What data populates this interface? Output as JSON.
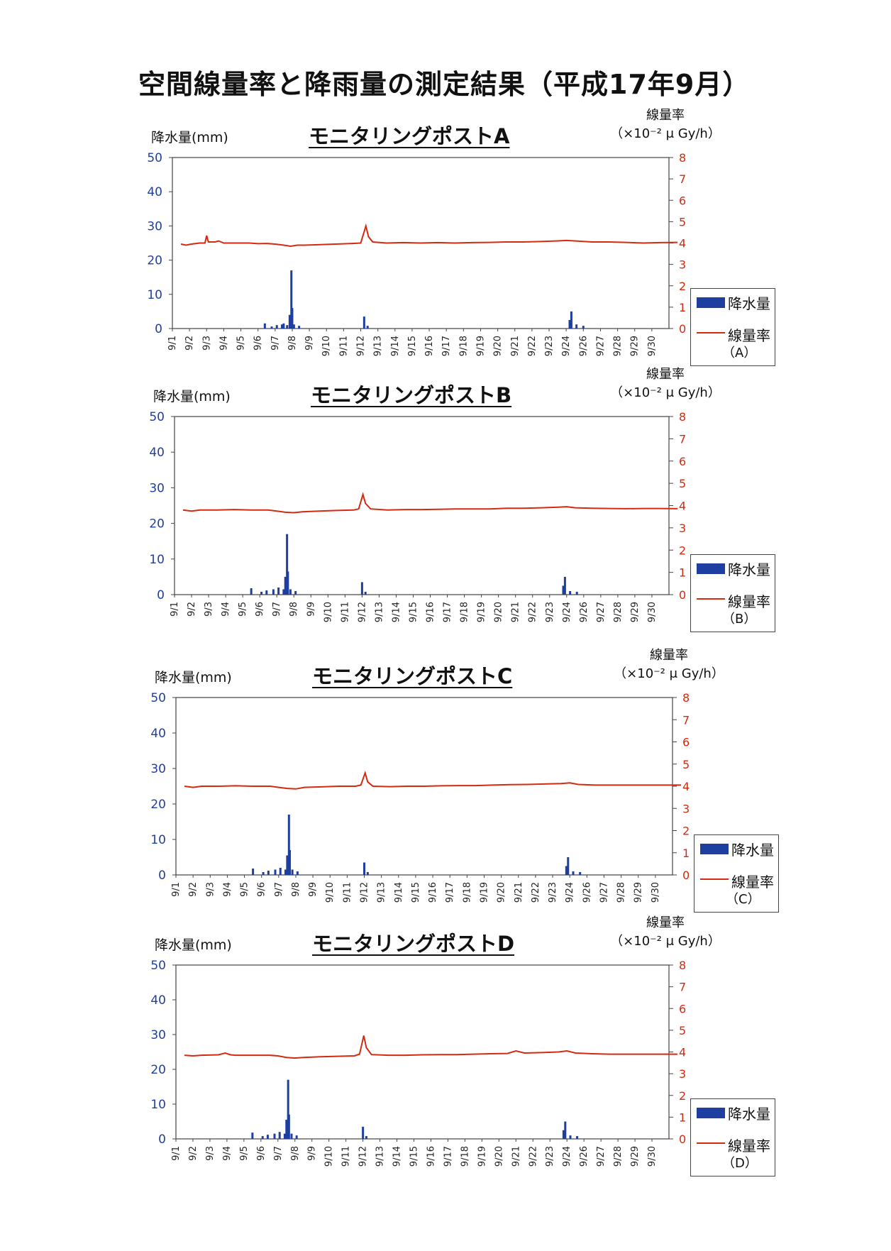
{
  "page_title": "空間線量率と降雨量の測定結果（平成17年9月）",
  "chart_data": [
    {
      "type": "bar+line",
      "title": "モニタリングポストA",
      "ylabel_left": "降水量(mm)",
      "ylabel_right_line1": "線量率",
      "ylabel_right_unit": "（×10⁻² μ Gy/h）",
      "ylim_left": [
        0,
        50
      ],
      "yticks_left": [
        "0",
        "10",
        "20",
        "30",
        "40",
        "50"
      ],
      "ylim_right": [
        0,
        8
      ],
      "yticks_right": [
        "0",
        "1",
        "2",
        "3",
        "4",
        "5",
        "6",
        "7",
        "8"
      ],
      "categories": [
        "9/1",
        "9/2",
        "9/3",
        "9/4",
        "9/5",
        "9/6",
        "9/7",
        "9/8",
        "9/9",
        "9/10",
        "9/11",
        "9/12",
        "9/13",
        "9/14",
        "9/15",
        "9/16",
        "9/17",
        "9/18",
        "9/19",
        "9/20",
        "9/21",
        "9/22",
        "9/23",
        "9/24",
        "9/26",
        "9/27",
        "9/28",
        "9/29",
        "9/30"
      ],
      "legend": {
        "bar": "降水量",
        "line": "線量率",
        "line_sub": "（A）"
      },
      "colors": {
        "bar": "#1f3fa0",
        "line": "#d42a10"
      },
      "rain": [
        [
          4.9,
          1.5
        ],
        [
          5.3,
          0.6
        ],
        [
          5.6,
          1.0
        ],
        [
          5.9,
          1.2
        ],
        [
          6.0,
          1.5
        ],
        [
          6.2,
          1.0
        ],
        [
          6.35,
          4.0
        ],
        [
          6.45,
          17.0
        ],
        [
          6.5,
          6.0
        ],
        [
          6.6,
          1.2
        ],
        [
          6.9,
          0.8
        ],
        [
          10.7,
          3.5
        ],
        [
          10.9,
          0.8
        ],
        [
          22.7,
          2.5
        ],
        [
          22.8,
          5.0
        ],
        [
          23.1,
          1.2
        ],
        [
          23.5,
          0.8
        ]
      ],
      "dose": [
        [
          0,
          3.95
        ],
        [
          0.3,
          3.9
        ],
        [
          0.6,
          3.95
        ],
        [
          1.1,
          4.0
        ],
        [
          1.4,
          4.0
        ],
        [
          1.5,
          4.35
        ],
        [
          1.6,
          4.05
        ],
        [
          2.0,
          4.05
        ],
        [
          2.2,
          4.1
        ],
        [
          2.5,
          4.0
        ],
        [
          3.5,
          4.0
        ],
        [
          4.0,
          4.0
        ],
        [
          4.5,
          3.97
        ],
        [
          5.0,
          3.98
        ],
        [
          5.5,
          3.95
        ],
        [
          6.0,
          3.9
        ],
        [
          6.4,
          3.85
        ],
        [
          6.8,
          3.9
        ],
        [
          7.2,
          3.9
        ],
        [
          8.0,
          3.92
        ],
        [
          9.0,
          3.95
        ],
        [
          10.0,
          3.98
        ],
        [
          10.5,
          4.0
        ],
        [
          10.8,
          4.8
        ],
        [
          10.95,
          4.3
        ],
        [
          11.2,
          4.05
        ],
        [
          12.0,
          4.0
        ],
        [
          13.0,
          4.02
        ],
        [
          14.0,
          4.0
        ],
        [
          15.0,
          4.02
        ],
        [
          16.0,
          4.0
        ],
        [
          17.0,
          4.02
        ],
        [
          18.0,
          4.03
        ],
        [
          19.0,
          4.05
        ],
        [
          20.0,
          4.05
        ],
        [
          21.0,
          4.07
        ],
        [
          22.0,
          4.1
        ],
        [
          22.5,
          4.12
        ],
        [
          23.0,
          4.1
        ],
        [
          24.0,
          4.05
        ],
        [
          25.0,
          4.05
        ],
        [
          26.0,
          4.03
        ],
        [
          27.0,
          4.0
        ],
        [
          28.0,
          4.02
        ],
        [
          29.0,
          4.03
        ]
      ]
    },
    {
      "type": "bar+line",
      "title": "モニタリングポストB",
      "ylabel_left": "降水量(mm)",
      "ylabel_right_line1": "線量率",
      "ylabel_right_unit": "（×10⁻² μ Gy/h）",
      "ylim_left": [
        0,
        50
      ],
      "yticks_left": [
        "0",
        "10",
        "20",
        "30",
        "40",
        "50"
      ],
      "ylim_right": [
        0,
        8
      ],
      "yticks_right": [
        "0",
        "1",
        "2",
        "3",
        "4",
        "5",
        "6",
        "7",
        "8"
      ],
      "categories": [
        "9/1",
        "9/2",
        "9/3",
        "9/4",
        "9/5",
        "9/6",
        "9/7",
        "9/8",
        "9/9",
        "9/10",
        "9/11",
        "9/12",
        "9/13",
        "9/14",
        "9/15",
        "9/16",
        "9/17",
        "9/18",
        "9/19",
        "9/20",
        "9/21",
        "9/22",
        "9/23",
        "9/24",
        "9/26",
        "9/27",
        "9/28",
        "9/29",
        "9/30"
      ],
      "legend": {
        "bar": "降水量",
        "line": "線量率",
        "line_sub": "（B）"
      },
      "colors": {
        "bar": "#1f3fa0",
        "line": "#d42a10"
      },
      "rain": [
        [
          4.0,
          1.8
        ],
        [
          4.6,
          0.8
        ],
        [
          4.9,
          1.2
        ],
        [
          5.3,
          1.5
        ],
        [
          5.6,
          2.0
        ],
        [
          5.9,
          1.5
        ],
        [
          6.0,
          5.0
        ],
        [
          6.1,
          17.0
        ],
        [
          6.15,
          6.5
        ],
        [
          6.3,
          1.5
        ],
        [
          6.6,
          1.0
        ],
        [
          10.5,
          3.5
        ],
        [
          10.7,
          0.8
        ],
        [
          22.3,
          2.5
        ],
        [
          22.4,
          5.0
        ],
        [
          22.7,
          1.0
        ],
        [
          23.1,
          0.8
        ]
      ],
      "dose": [
        [
          0,
          3.8
        ],
        [
          0.5,
          3.75
        ],
        [
          1.0,
          3.8
        ],
        [
          2.0,
          3.8
        ],
        [
          3.0,
          3.82
        ],
        [
          4.0,
          3.8
        ],
        [
          5.0,
          3.8
        ],
        [
          5.5,
          3.75
        ],
        [
          6.0,
          3.7
        ],
        [
          6.5,
          3.68
        ],
        [
          7.0,
          3.72
        ],
        [
          8.0,
          3.75
        ],
        [
          9.0,
          3.78
        ],
        [
          10.0,
          3.8
        ],
        [
          10.3,
          3.85
        ],
        [
          10.55,
          4.5
        ],
        [
          10.7,
          4.1
        ],
        [
          11.0,
          3.85
        ],
        [
          12.0,
          3.8
        ],
        [
          13.0,
          3.82
        ],
        [
          14.0,
          3.82
        ],
        [
          15.0,
          3.83
        ],
        [
          16.0,
          3.85
        ],
        [
          17.0,
          3.85
        ],
        [
          18.0,
          3.85
        ],
        [
          19.0,
          3.88
        ],
        [
          20.0,
          3.88
        ],
        [
          21.0,
          3.9
        ],
        [
          22.0,
          3.93
        ],
        [
          22.5,
          3.95
        ],
        [
          23.0,
          3.9
        ],
        [
          24.0,
          3.88
        ],
        [
          25.0,
          3.87
        ],
        [
          26.0,
          3.86
        ],
        [
          27.0,
          3.87
        ],
        [
          28.0,
          3.87
        ],
        [
          29.0,
          3.86
        ]
      ]
    },
    {
      "type": "bar+line",
      "title": "モニタリングポストC",
      "ylabel_left": "降水量(mm)",
      "ylabel_right_line1": "線量率",
      "ylabel_right_unit": "（×10⁻² μ Gy/h）",
      "ylim_left": [
        0,
        50
      ],
      "yticks_left": [
        "0",
        "10",
        "20",
        "30",
        "40",
        "50"
      ],
      "ylim_right": [
        0,
        8
      ],
      "yticks_right": [
        "0",
        "1",
        "2",
        "3",
        "4",
        "5",
        "6",
        "7",
        "8"
      ],
      "categories": [
        "9/1",
        "9/2",
        "9/3",
        "9/4",
        "9/5",
        "9/6",
        "9/7",
        "9/8",
        "9/9",
        "9/10",
        "9/11",
        "9/12",
        "9/13",
        "9/14",
        "9/15",
        "9/16",
        "9/17",
        "9/18",
        "9/19",
        "9/20",
        "9/21",
        "9/22",
        "9/23",
        "9/24",
        "9/26",
        "9/27",
        "9/28",
        "9/29",
        "9/30"
      ],
      "legend": {
        "bar": "降水量",
        "line": "線量率",
        "line_sub": "（C）"
      },
      "colors": {
        "bar": "#1f3fa0",
        "line": "#d42a10"
      },
      "rain": [
        [
          4.0,
          1.8
        ],
        [
          4.6,
          0.8
        ],
        [
          4.9,
          1.2
        ],
        [
          5.3,
          1.5
        ],
        [
          5.6,
          2.0
        ],
        [
          5.9,
          1.5
        ],
        [
          6.0,
          5.5
        ],
        [
          6.1,
          17.0
        ],
        [
          6.15,
          7.0
        ],
        [
          6.3,
          1.5
        ],
        [
          6.6,
          1.0
        ],
        [
          10.5,
          3.5
        ],
        [
          10.7,
          0.8
        ],
        [
          22.3,
          2.5
        ],
        [
          22.4,
          5.0
        ],
        [
          22.7,
          1.0
        ],
        [
          23.1,
          0.8
        ]
      ],
      "dose": [
        [
          0,
          4.0
        ],
        [
          0.5,
          3.95
        ],
        [
          1.0,
          4.0
        ],
        [
          2.0,
          4.0
        ],
        [
          3.0,
          4.02
        ],
        [
          4.0,
          4.0
        ],
        [
          5.0,
          4.0
        ],
        [
          5.5,
          3.95
        ],
        [
          6.0,
          3.9
        ],
        [
          6.5,
          3.88
        ],
        [
          7.0,
          3.95
        ],
        [
          8.0,
          3.97
        ],
        [
          9.0,
          4.0
        ],
        [
          10.0,
          4.0
        ],
        [
          10.3,
          4.05
        ],
        [
          10.55,
          4.6
        ],
        [
          10.7,
          4.2
        ],
        [
          11.0,
          4.0
        ],
        [
          12.0,
          3.98
        ],
        [
          13.0,
          4.0
        ],
        [
          14.0,
          4.0
        ],
        [
          15.0,
          4.02
        ],
        [
          16.0,
          4.03
        ],
        [
          17.0,
          4.03
        ],
        [
          18.0,
          4.05
        ],
        [
          19.0,
          4.07
        ],
        [
          20.0,
          4.08
        ],
        [
          21.0,
          4.1
        ],
        [
          22.0,
          4.12
        ],
        [
          22.5,
          4.15
        ],
        [
          23.0,
          4.08
        ],
        [
          24.0,
          4.05
        ],
        [
          25.0,
          4.05
        ],
        [
          26.0,
          4.05
        ],
        [
          27.0,
          4.05
        ],
        [
          28.0,
          4.05
        ],
        [
          29.0,
          4.05
        ]
      ]
    },
    {
      "type": "bar+line",
      "title": "モニタリングポストD",
      "ylabel_left": "降水量(mm)",
      "ylabel_right_line1": "線量率",
      "ylabel_right_unit": "（×10⁻² μ Gy/h）",
      "ylim_left": [
        0,
        50
      ],
      "yticks_left": [
        "0",
        "10",
        "20",
        "30",
        "40",
        "50"
      ],
      "ylim_right": [
        0,
        8
      ],
      "yticks_right": [
        "0",
        "1",
        "2",
        "3",
        "4",
        "5",
        "6",
        "7",
        "8"
      ],
      "categories": [
        "9/1",
        "9/2",
        "9/3",
        "9/4",
        "9/5",
        "9/6",
        "9/7",
        "9/8",
        "9/9",
        "9/10",
        "9/11",
        "9/12",
        "9/13",
        "9/14",
        "9/15",
        "9/16",
        "9/17",
        "9/18",
        "9/19",
        "9/20",
        "9/21",
        "9/22",
        "9/23",
        "9/24",
        "9/26",
        "9/27",
        "9/28",
        "9/29",
        "9/30"
      ],
      "legend": {
        "bar": "降水量",
        "line": "線量率",
        "line_sub": "（D）"
      },
      "colors": {
        "bar": "#1f3fa0",
        "line": "#d42a10"
      },
      "rain": [
        [
          4.0,
          1.8
        ],
        [
          4.6,
          0.8
        ],
        [
          4.9,
          1.2
        ],
        [
          5.3,
          1.5
        ],
        [
          5.6,
          2.0
        ],
        [
          5.9,
          1.5
        ],
        [
          6.0,
          5.5
        ],
        [
          6.1,
          17.0
        ],
        [
          6.15,
          7.0
        ],
        [
          6.3,
          1.5
        ],
        [
          6.6,
          1.0
        ],
        [
          10.5,
          3.5
        ],
        [
          10.7,
          0.8
        ],
        [
          22.3,
          2.5
        ],
        [
          22.4,
          5.0
        ],
        [
          22.7,
          1.0
        ],
        [
          23.1,
          0.8
        ]
      ],
      "dose": [
        [
          0,
          3.85
        ],
        [
          0.5,
          3.82
        ],
        [
          1.0,
          3.85
        ],
        [
          2.0,
          3.87
        ],
        [
          2.4,
          3.95
        ],
        [
          2.7,
          3.87
        ],
        [
          3.0,
          3.85
        ],
        [
          4.0,
          3.85
        ],
        [
          5.0,
          3.85
        ],
        [
          5.5,
          3.82
        ],
        [
          6.0,
          3.75
        ],
        [
          6.5,
          3.72
        ],
        [
          7.0,
          3.75
        ],
        [
          8.0,
          3.78
        ],
        [
          9.0,
          3.8
        ],
        [
          10.0,
          3.82
        ],
        [
          10.3,
          3.9
        ],
        [
          10.55,
          4.75
        ],
        [
          10.7,
          4.2
        ],
        [
          11.0,
          3.88
        ],
        [
          12.0,
          3.85
        ],
        [
          13.0,
          3.85
        ],
        [
          14.0,
          3.87
        ],
        [
          15.0,
          3.88
        ],
        [
          16.0,
          3.88
        ],
        [
          17.0,
          3.9
        ],
        [
          18.0,
          3.92
        ],
        [
          19.0,
          3.93
        ],
        [
          19.5,
          4.05
        ],
        [
          20.0,
          3.95
        ],
        [
          21.0,
          3.97
        ],
        [
          22.0,
          4.0
        ],
        [
          22.5,
          4.05
        ],
        [
          23.0,
          3.95
        ],
        [
          24.0,
          3.92
        ],
        [
          25.0,
          3.9
        ],
        [
          26.0,
          3.9
        ],
        [
          27.0,
          3.9
        ],
        [
          28.0,
          3.9
        ],
        [
          29.0,
          3.9
        ]
      ]
    }
  ]
}
